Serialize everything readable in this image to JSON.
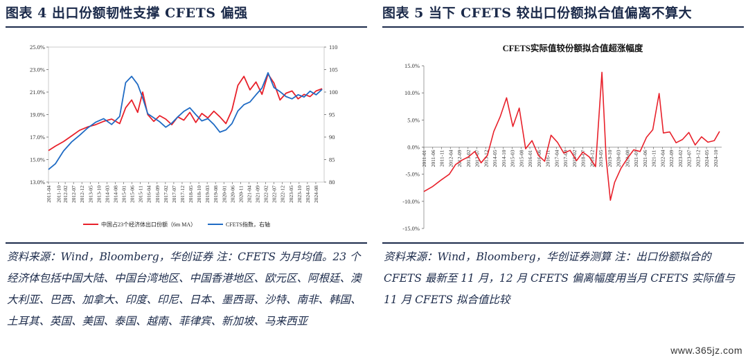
{
  "left": {
    "title": "图表 4    出口份额韧性支撑 CFETS 偏强",
    "source": "资料来源：Wind，Bloomberg，华创证券    注：CFETS 为月均值。23 个经济体包括中国大陆、中国台湾地区、中国香港地区、欧元区、阿根廷、澳大利亚、巴西、加拿大、印度、印尼、日本、墨西哥、沙特、南非、韩国、土耳其、英国、美国、泰国、越南、菲律宾、新加坡、马来西亚"
  },
  "right": {
    "title": "图表 5    当下 CFETS 较出口份额拟合值偏离不算大",
    "source": "资料来源：Wind，Bloomberg，华创证券测算    注：出口份额拟合的 CFETS 最新至 11 月，12 月 CFETS 偏离幅度用当月 CFETS 实际值与 11 月 CFETS 拟合值比较"
  },
  "watermark": "www.365jz.com",
  "colors": {
    "red": "#e8202a",
    "blue": "#1f6bc4",
    "navy": "#1b2a4a"
  },
  "chart_data": [
    {
      "type": "line",
      "title": "",
      "x_ticks": [
        "2011-04",
        "2011-10",
        "2012-02",
        "2012-07",
        "2012-12",
        "2013-05",
        "2013-10",
        "2014-03",
        "2014-08",
        "2015-01",
        "2015-06",
        "2015-11",
        "2016-04",
        "2016-09",
        "2017-02",
        "2017-07",
        "2017-12",
        "2018-05",
        "2018-10",
        "2019-03",
        "2019-08",
        "2020-01",
        "2020-06",
        "2020-11",
        "2021-04",
        "2021-09",
        "2022-02",
        "2022-07",
        "2022-12",
        "2023-05",
        "2023-10",
        "2024-03",
        "2024-08"
      ],
      "y_left": {
        "ticks": [
          "13.0%",
          "15.0%",
          "17.0%",
          "19.0%",
          "21.0%",
          "23.0%",
          "25.0%"
        ],
        "range": [
          13,
          25
        ]
      },
      "y_right": {
        "ticks": [
          "80",
          "85",
          "90",
          "95",
          "100",
          "105",
          "110"
        ],
        "range": [
          80,
          110
        ]
      },
      "series": [
        {
          "name": "中国占23个经济体出口份额（6m MA）",
          "axis": "left",
          "color": "#e8202a",
          "x": [
            2011.25,
            2011.6,
            2012.0,
            2012.4,
            2012.8,
            2013.2,
            2013.6,
            2014.0,
            2014.4,
            2014.8,
            2015.1,
            2015.4,
            2015.7,
            2015.95,
            2016.2,
            2016.5,
            2016.8,
            2017.1,
            2017.4,
            2017.7,
            2018.0,
            2018.3,
            2018.6,
            2018.9,
            2019.2,
            2019.5,
            2019.8,
            2020.1,
            2020.4,
            2020.7,
            2021.0,
            2021.3,
            2021.6,
            2021.9,
            2022.2,
            2022.5,
            2022.8,
            2023.1,
            2023.4,
            2023.7,
            2024.0,
            2024.3,
            2024.6,
            2024.9
          ],
          "y": [
            15.8,
            16.2,
            16.6,
            17.1,
            17.6,
            17.9,
            18.1,
            18.4,
            18.6,
            18.2,
            19.6,
            20.3,
            19.2,
            21.0,
            19.0,
            18.4,
            18.9,
            18.6,
            18.1,
            18.8,
            18.5,
            19.2,
            18.3,
            19.1,
            18.7,
            19.3,
            18.8,
            18.2,
            19.4,
            21.6,
            22.4,
            21.2,
            21.9,
            20.8,
            22.6,
            21.8,
            20.3,
            20.9,
            21.1,
            20.4,
            20.8,
            20.6,
            21.1,
            21.3
          ]
        },
        {
          "name": "CFETS指数，右轴",
          "axis": "right",
          "color": "#1f6bc4",
          "x": [
            2011.25,
            2011.6,
            2012.0,
            2012.4,
            2012.8,
            2013.2,
            2013.6,
            2014.0,
            2014.4,
            2014.8,
            2015.1,
            2015.4,
            2015.7,
            2015.95,
            2016.2,
            2016.5,
            2016.8,
            2017.1,
            2017.4,
            2017.7,
            2018.0,
            2018.3,
            2018.6,
            2018.9,
            2019.2,
            2019.5,
            2019.8,
            2020.1,
            2020.4,
            2020.7,
            2021.0,
            2021.3,
            2021.6,
            2021.9,
            2022.2,
            2022.5,
            2022.8,
            2023.1,
            2023.4,
            2023.7,
            2024.0,
            2024.3,
            2024.6,
            2024.9
          ],
          "y": [
            82.8,
            84.1,
            86.9,
            88.9,
            90.4,
            92.0,
            93.3,
            94.1,
            92.8,
            94.6,
            102.1,
            103.5,
            101.7,
            98.7,
            95.2,
            94.3,
            93.4,
            92.2,
            93.1,
            94.5,
            95.7,
            96.5,
            95.0,
            93.6,
            94.1,
            92.8,
            91.1,
            91.6,
            93.0,
            95.8,
            97.2,
            97.8,
            99.4,
            100.9,
            104.3,
            101.0,
            100.1,
            99.0,
            98.5,
            99.4,
            98.9,
            100.2,
            99.4,
            100.6
          ]
        }
      ]
    },
    {
      "type": "line",
      "title": "CFETS实际值较份额拟合值超涨幅度",
      "x_ticks": [
        "2011-01",
        "2011-06",
        "2011-11",
        "2012-04",
        "2012-09",
        "2013-02",
        "2013-07",
        "2013-12",
        "2014-05",
        "2014-10",
        "2015-03",
        "2015-08",
        "2016-01",
        "2016-06",
        "2016-11",
        "2017-04",
        "2017-09",
        "2018-02",
        "2018-07",
        "2018-12",
        "2019-05",
        "2019-10",
        "2020-03",
        "2020-08",
        "2021-01",
        "2021-06",
        "2021-11",
        "2022-04",
        "2022-09",
        "2023-02",
        "2023-07",
        "2023-12",
        "2024-05",
        "2024-10"
      ],
      "y": {
        "ticks": [
          "15.0%",
          "10.0%",
          "5.0%",
          "0.0%",
          "-5.0%",
          "-10.0%",
          "-15.0%"
        ],
        "range": [
          -15,
          15
        ]
      },
      "series": [
        {
          "name": "",
          "color": "#e8202a",
          "x": [
            2011.0,
            2011.4,
            2011.8,
            2012.2,
            2012.5,
            2012.8,
            2013.1,
            2013.4,
            2013.7,
            2014.0,
            2014.3,
            2014.6,
            2014.9,
            2015.2,
            2015.5,
            2015.8,
            2016.1,
            2016.4,
            2016.7,
            2017.0,
            2017.3,
            2017.6,
            2017.9,
            2018.2,
            2018.5,
            2018.8,
            2019.1,
            2019.4,
            2019.6,
            2019.8,
            2020.0,
            2020.3,
            2020.6,
            2020.9,
            2021.2,
            2021.5,
            2021.8,
            2022.1,
            2022.3,
            2022.6,
            2022.9,
            2023.2,
            2023.5,
            2023.8,
            2024.1,
            2024.4,
            2024.7,
            2024.95
          ],
          "y": [
            -8.2,
            -7.3,
            -6.1,
            -5.0,
            -3.2,
            -2.4,
            -1.8,
            -0.8,
            -2.9,
            -1.5,
            2.9,
            5.6,
            9.1,
            3.8,
            7.2,
            -0.3,
            1.2,
            -1.5,
            -2.6,
            2.2,
            0.9,
            -1.1,
            -0.6,
            -2.5,
            -0.9,
            -1.8,
            -3.6,
            13.8,
            -2.1,
            -9.8,
            -6.5,
            -3.9,
            -2.1,
            -0.5,
            -0.8,
            1.8,
            3.2,
            9.9,
            2.6,
            2.8,
            0.8,
            1.4,
            2.7,
            0.4,
            1.9,
            0.9,
            1.2,
            2.9
          ]
        }
      ]
    }
  ]
}
